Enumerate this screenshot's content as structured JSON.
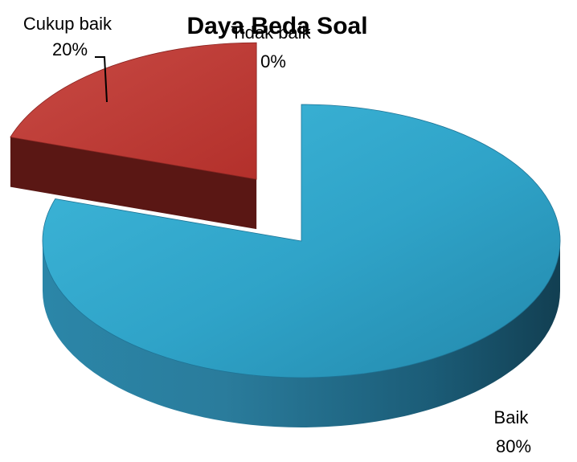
{
  "chart_data": {
    "type": "pie",
    "style": "3d-exploded",
    "title": "Daya Beda Soal",
    "slices": [
      {
        "name": "Baik",
        "value": 80,
        "percent_label": "80%",
        "color": "#31A9CE"
      },
      {
        "name": "Cukup baik",
        "value": 20,
        "percent_label": "20%",
        "color": "#C0392B"
      },
      {
        "name": "Tidak baik",
        "value": 0,
        "percent_label": "0%",
        "color": "#7F7F7F"
      }
    ]
  }
}
